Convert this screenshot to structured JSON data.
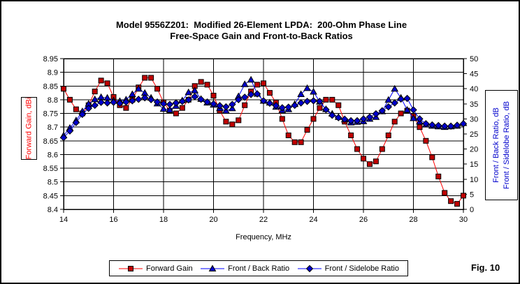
{
  "figure": {
    "title_line1": "Model 9556Z201:  Modified 26-Element LPDA:  200-Ohm Phase Line",
    "title_line2": "Free-Space Gain and Front-to-Back Ratios",
    "fig_label": "Fig. 10"
  },
  "colors": {
    "forward_gain_line": "#FF0000",
    "forward_gain_marker": "#C00000",
    "blue_line": "#0000FF",
    "blue_marker": "#0000CC",
    "grid": "#000000",
    "text": "#000000"
  },
  "chart_data": {
    "type": "line",
    "title": "Model 9556Z201:  Modified 26-Element LPDA:  200-Ohm Phase Line — Free-Space Gain and Front-to-Back Ratios",
    "grid": true,
    "legend_position": "bottom",
    "x_axis": {
      "label": "Frequency, MHz",
      "min": 14,
      "max": 30,
      "tick_values": [
        14,
        16,
        18,
        20,
        22,
        24,
        26,
        28,
        30
      ],
      "tick_labels": [
        "14",
        "16",
        "18",
        "20",
        "22",
        "24",
        "26",
        "28",
        "30"
      ]
    },
    "y_left": {
      "label": "Forward Gain, dBi",
      "min": 8.4,
      "max": 8.95,
      "tick_values": [
        8.95,
        8.9,
        8.85,
        8.8,
        8.75,
        8.7,
        8.65,
        8.6,
        8.55,
        8.5,
        8.45,
        8.4
      ],
      "tick_labels": [
        "8.95",
        "8.9",
        "8.85",
        "8.8",
        "8.75",
        "8.7",
        "8.65",
        "8.6",
        "8.55",
        "8.5",
        "8.45",
        "8.4"
      ]
    },
    "y_right": {
      "label_line1": "Front / Back Ratio, dB",
      "label_line2": "Front / Sidelobe Ratio, dB",
      "min": 0,
      "max": 50,
      "tick_values": [
        50,
        45,
        40,
        35,
        30,
        25,
        20,
        15,
        10,
        5,
        0
      ],
      "tick_labels": [
        "50",
        "45",
        "40",
        "35",
        "30",
        "25",
        "20",
        "15",
        "10",
        "5",
        "0"
      ]
    },
    "x": [
      14,
      14.25,
      14.5,
      14.75,
      15,
      15.25,
      15.5,
      15.75,
      16,
      16.25,
      16.5,
      16.75,
      17,
      17.25,
      17.5,
      17.75,
      18,
      18.25,
      18.5,
      18.75,
      19,
      19.25,
      19.5,
      19.75,
      20,
      20.25,
      20.5,
      20.75,
      21,
      21.25,
      21.5,
      21.75,
      22,
      22.25,
      22.5,
      22.75,
      23,
      23.25,
      23.5,
      23.75,
      24,
      24.25,
      24.5,
      24.75,
      25,
      25.25,
      25.5,
      25.75,
      26,
      26.25,
      26.5,
      26.75,
      27,
      27.25,
      27.5,
      27.75,
      28,
      28.25,
      28.5,
      28.75,
      29,
      29.25,
      29.5,
      29.75,
      30
    ],
    "series": [
      {
        "name": "Forward Gain",
        "axis": "left",
        "marker": "square",
        "line_color": "#FF0000",
        "marker_color": "#C00000",
        "values": [
          8.84,
          8.8,
          8.765,
          8.75,
          8.78,
          8.83,
          8.87,
          8.86,
          8.81,
          8.78,
          8.77,
          8.8,
          8.845,
          8.88,
          8.88,
          8.84,
          8.79,
          8.76,
          8.75,
          8.77,
          8.8,
          8.85,
          8.865,
          8.855,
          8.815,
          8.76,
          8.72,
          8.71,
          8.725,
          8.78,
          8.83,
          8.855,
          8.86,
          8.825,
          8.79,
          8.73,
          8.67,
          8.645,
          8.645,
          8.69,
          8.73,
          8.77,
          8.8,
          8.8,
          8.78,
          8.72,
          8.67,
          8.62,
          8.585,
          8.565,
          8.575,
          8.62,
          8.67,
          8.72,
          8.75,
          8.76,
          8.74,
          8.7,
          8.65,
          8.59,
          8.52,
          8.46,
          8.43,
          8.42,
          8.45
        ]
      },
      {
        "name": "Front / Back Ratio",
        "axis": "right",
        "marker": "triangle",
        "line_color": "#0000FF",
        "marker_color": "#0000CC",
        "values": [
          24.5,
          27.0,
          29.5,
          32.5,
          35.0,
          36.5,
          37.2,
          37.0,
          36.1,
          35.9,
          36.4,
          38.2,
          40.0,
          38.6,
          37.0,
          35.1,
          33.3,
          33.0,
          34.3,
          36.1,
          38.8,
          39.4,
          36.6,
          35.4,
          34.7,
          33.5,
          32.7,
          33.5,
          37.5,
          41.5,
          43.0,
          38.3,
          36.0,
          35.4,
          34.0,
          32.8,
          33.2,
          34.9,
          38.2,
          40.2,
          39.0,
          35.7,
          33.2,
          31.7,
          30.6,
          29.8,
          28.8,
          29.0,
          29.2,
          30.0,
          30.6,
          32.5,
          36.3,
          40.0,
          37.0,
          33.0,
          30.2,
          29.1,
          28.1,
          27.7,
          27.5,
          27.3,
          27.5,
          27.7,
          28.6
        ]
      },
      {
        "name": "Front / Sidelobe Ratio",
        "axis": "right",
        "marker": "diamond",
        "line_color": "#0000FF",
        "marker_color": "#0000CC",
        "values": [
          23.8,
          26.0,
          28.8,
          31.5,
          33.5,
          34.5,
          35.5,
          35.3,
          35.5,
          35.2,
          35.6,
          36.0,
          36.5,
          37.0,
          36.4,
          35.6,
          35.0,
          34.8,
          35.3,
          35.8,
          36.3,
          37.4,
          36.5,
          35.6,
          35.0,
          34.4,
          34.0,
          34.8,
          36.4,
          37.2,
          38.1,
          38.3,
          36.0,
          35.2,
          34.4,
          33.7,
          33.9,
          34.5,
          35.3,
          35.8,
          36.0,
          35.8,
          33.1,
          31.2,
          30.4,
          29.9,
          29.4,
          29.4,
          30.0,
          30.6,
          31.7,
          32.7,
          34.0,
          35.3,
          36.6,
          36.8,
          33.0,
          30.0,
          28.4,
          28.0,
          27.8,
          27.6,
          27.6,
          27.9,
          28.4
        ]
      }
    ]
  }
}
